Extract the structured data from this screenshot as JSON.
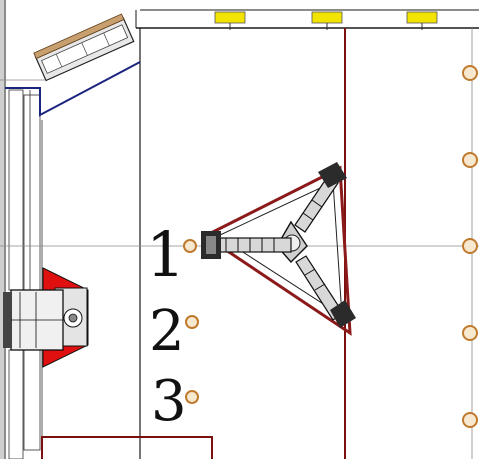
{
  "diagram": {
    "kind": "stage plan",
    "handwritten_labels": [
      "1",
      "2",
      "3"
    ],
    "colors": {
      "wall_line": "#1a1a1a",
      "grid_line": "#8a8a8a",
      "truss_outline": "#8b1a1a",
      "red_line": "#7a1010",
      "navy_line": "#1a237e",
      "light_fixture": "#f2e400",
      "circle_marker": "#c07a2e",
      "red_block": "#e01010",
      "ink": "#111111"
    },
    "icons": {
      "lights": "yellow-fixture-icon",
      "markers": "circle-marker-icon",
      "truss": "triangle-truss-icon"
    }
  }
}
